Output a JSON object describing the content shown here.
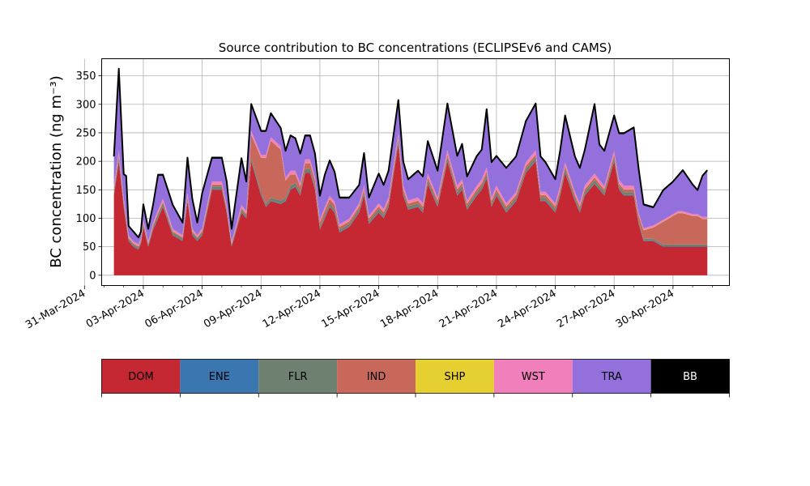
{
  "chart_data": {
    "type": "area",
    "stacked": true,
    "title": "Source contribution to BC concentrations (ECLIPSEv6 and CAMS)",
    "ylabel": "BC concentration (ng m⁻³)",
    "xlabel": "",
    "ylim": [
      -18,
      380
    ],
    "xlim": [
      "2024-03-31T21:00",
      "2024-05-02T21:00"
    ],
    "yticks": [
      0,
      50,
      100,
      150,
      200,
      250,
      300,
      350
    ],
    "xticks": [
      "31-Mar-2024",
      "03-Apr-2024",
      "06-Apr-2024",
      "09-Apr-2024",
      "12-Apr-2024",
      "15-Apr-2024",
      "18-Apr-2024",
      "21-Apr-2024",
      "24-Apr-2024",
      "27-Apr-2024",
      "30-Apr-2024"
    ],
    "grid": true,
    "legend_position": "below",
    "x": [
      "2024-04-01T12:00",
      "2024-04-01T18:00",
      "2024-04-02T00:00",
      "2024-04-02T03:00",
      "2024-04-02T06:00",
      "2024-04-02T12:00",
      "2024-04-02T18:00",
      "2024-04-02T21:00",
      "2024-04-03T00:00",
      "2024-04-03T06:00",
      "2024-04-03T12:00",
      "2024-04-03T18:00",
      "2024-04-04T00:00",
      "2024-04-04T12:00",
      "2024-04-05T00:00",
      "2024-04-05T06:00",
      "2024-04-05T12:00",
      "2024-04-05T18:00",
      "2024-04-06T00:00",
      "2024-04-06T12:00",
      "2024-04-07T00:00",
      "2024-04-07T06:00",
      "2024-04-07T12:00",
      "2024-04-08T00:00",
      "2024-04-08T06:00",
      "2024-04-08T12:00",
      "2024-04-09T00:00",
      "2024-04-09T06:00",
      "2024-04-09T12:00",
      "2024-04-10T00:00",
      "2024-04-10T06:00",
      "2024-04-10T12:00",
      "2024-04-10T18:00",
      "2024-04-11T00:00",
      "2024-04-11T06:00",
      "2024-04-11T12:00",
      "2024-04-11T18:00",
      "2024-04-12T00:00",
      "2024-04-12T06:00",
      "2024-04-12T12:00",
      "2024-04-12T18:00",
      "2024-04-13T00:00",
      "2024-04-13T12:00",
      "2024-04-14T00:00",
      "2024-04-14T06:00",
      "2024-04-14T12:00",
      "2024-04-15T00:00",
      "2024-04-15T06:00",
      "2024-04-15T12:00",
      "2024-04-16T00:00",
      "2024-04-16T06:00",
      "2024-04-16T12:00",
      "2024-04-17T00:00",
      "2024-04-17T06:00",
      "2024-04-17T12:00",
      "2024-04-18T00:00",
      "2024-04-18T12:00",
      "2024-04-19T00:00",
      "2024-04-19T06:00",
      "2024-04-19T12:00",
      "2024-04-20T00:00",
      "2024-04-20T06:00",
      "2024-04-20T12:00",
      "2024-04-20T18:00",
      "2024-04-21T00:00",
      "2024-04-21T12:00",
      "2024-04-22T00:00",
      "2024-04-22T12:00",
      "2024-04-23T00:00",
      "2024-04-23T06:00",
      "2024-04-23T12:00",
      "2024-04-24T00:00",
      "2024-04-24T06:00",
      "2024-04-24T12:00",
      "2024-04-25T00:00",
      "2024-04-25T06:00",
      "2024-04-25T12:00",
      "2024-04-26T00:00",
      "2024-04-26T06:00",
      "2024-04-26T12:00",
      "2024-04-27T00:00",
      "2024-04-27T06:00",
      "2024-04-27T12:00",
      "2024-04-28T00:00",
      "2024-04-28T06:00",
      "2024-04-28T12:00",
      "2024-04-29T00:00",
      "2024-04-29T06:00",
      "2024-04-29T12:00",
      "2024-04-30T00:00",
      "2024-04-30T06:00",
      "2024-04-30T12:00",
      "2024-05-01T00:00",
      "2024-05-01T06:00",
      "2024-05-01T12:00",
      "2024-05-01T18:00"
    ],
    "series": [
      {
        "name": "DOM",
        "color": "#c62833",
        "values": [
          140,
          200,
          120,
          90,
          60,
          50,
          45,
          55,
          85,
          50,
          80,
          100,
          120,
          70,
          60,
          130,
          70,
          60,
          70,
          150,
          150,
          110,
          50,
          110,
          100,
          200,
          140,
          120,
          130,
          125,
          130,
          150,
          155,
          140,
          180,
          180,
          150,
          80,
          100,
          120,
          110,
          75,
          85,
          110,
          140,
          90,
          110,
          100,
          120,
          230,
          140,
          115,
          120,
          110,
          160,
          120,
          200,
          140,
          150,
          115,
          140,
          150,
          170,
          120,
          140,
          110,
          130,
          180,
          200,
          130,
          130,
          110,
          140,
          180,
          130,
          110,
          140,
          160,
          150,
          140,
          200,
          150,
          140,
          140,
          90,
          60,
          60,
          55,
          50,
          50,
          50,
          50,
          50,
          50,
          50,
          50
        ]
      },
      {
        "name": "ENE",
        "color": "#3a76b0",
        "values": [
          2,
          2,
          2,
          1,
          1,
          1,
          1,
          1,
          1,
          1,
          1,
          1,
          1,
          1,
          1,
          1,
          1,
          1,
          1,
          1,
          1,
          1,
          1,
          1,
          1,
          1,
          1,
          1,
          1,
          1,
          1,
          1,
          1,
          1,
          1,
          1,
          1,
          1,
          1,
          1,
          1,
          1,
          1,
          1,
          1,
          1,
          1,
          1,
          1,
          1,
          1,
          1,
          1,
          1,
          1,
          1,
          1,
          1,
          1,
          1,
          1,
          1,
          1,
          1,
          1,
          1,
          1,
          1,
          1,
          1,
          1,
          1,
          1,
          1,
          1,
          1,
          1,
          1,
          1,
          1,
          1,
          1,
          1,
          1,
          1,
          1,
          1,
          1,
          1,
          1,
          1,
          1,
          1,
          1,
          1,
          1
        ]
      },
      {
        "name": "FLR",
        "color": "#6e8070",
        "values": [
          5,
          6,
          5,
          4,
          3,
          3,
          3,
          3,
          4,
          3,
          4,
          5,
          5,
          4,
          4,
          5,
          4,
          4,
          4,
          5,
          5,
          4,
          3,
          4,
          4,
          6,
          5,
          5,
          5,
          5,
          5,
          6,
          6,
          5,
          6,
          6,
          5,
          4,
          5,
          5,
          5,
          4,
          4,
          5,
          5,
          4,
          5,
          5,
          5,
          7,
          5,
          5,
          5,
          5,
          6,
          5,
          6,
          5,
          6,
          5,
          5,
          6,
          6,
          5,
          5,
          5,
          5,
          6,
          6,
          5,
          5,
          5,
          5,
          6,
          5,
          5,
          5,
          6,
          5,
          5,
          6,
          5,
          5,
          5,
          4,
          3,
          3,
          3,
          3,
          3,
          3,
          3,
          3,
          3,
          3,
          3
        ]
      },
      {
        "name": "IND",
        "color": "#c8685a",
        "values": [
          3,
          4,
          3,
          3,
          2,
          2,
          2,
          2,
          3,
          2,
          3,
          3,
          3,
          2,
          2,
          3,
          2,
          2,
          3,
          3,
          3,
          3,
          2,
          3,
          3,
          40,
          60,
          80,
          100,
          90,
          30,
          20,
          15,
          10,
          10,
          10,
          10,
          8,
          8,
          8,
          8,
          5,
          5,
          5,
          5,
          5,
          5,
          5,
          5,
          5,
          5,
          5,
          5,
          5,
          5,
          5,
          5,
          5,
          5,
          5,
          5,
          5,
          5,
          5,
          5,
          5,
          5,
          5,
          5,
          5,
          5,
          5,
          5,
          5,
          5,
          5,
          5,
          5,
          5,
          5,
          5,
          5,
          5,
          5,
          10,
          15,
          20,
          30,
          40,
          50,
          55,
          55,
          50,
          50,
          45,
          45
        ]
      },
      {
        "name": "SHP",
        "color": "#e6cf30",
        "values": [
          0.5,
          0.5,
          0.5,
          0.5,
          0.5,
          0.5,
          0.5,
          0.5,
          0.5,
          0.5,
          0.5,
          0.5,
          0.5,
          0.5,
          0.5,
          0.5,
          0.5,
          0.5,
          0.5,
          0.5,
          0.5,
          0.5,
          0.5,
          0.5,
          0.5,
          0.5,
          0.5,
          0.5,
          0.5,
          0.5,
          0.5,
          0.5,
          0.5,
          0.5,
          0.5,
          0.5,
          0.5,
          0.5,
          0.5,
          0.5,
          0.5,
          0.5,
          0.5,
          0.5,
          0.5,
          0.5,
          0.5,
          0.5,
          0.5,
          0.5,
          0.5,
          0.5,
          0.5,
          0.5,
          0.5,
          0.5,
          0.5,
          0.5,
          0.5,
          0.5,
          0.5,
          0.5,
          0.5,
          0.5,
          0.5,
          0.5,
          0.5,
          0.5,
          0.5,
          0.5,
          0.5,
          0.5,
          0.5,
          0.5,
          0.5,
          0.5,
          0.5,
          0.5,
          0.5,
          0.5,
          0.5,
          0.5,
          0.5,
          0.5,
          0.5,
          0.5,
          0.5,
          0.5,
          0.5,
          0.5,
          0.5,
          0.5,
          0.5,
          0.5,
          0.5,
          0.5
        ]
      },
      {
        "name": "WST",
        "color": "#f07fbc",
        "values": [
          6,
          7,
          5,
          4,
          3,
          3,
          3,
          3,
          4,
          3,
          4,
          5,
          5,
          4,
          3,
          5,
          4,
          3,
          4,
          5,
          5,
          4,
          3,
          5,
          4,
          6,
          5,
          5,
          6,
          5,
          5,
          6,
          6,
          5,
          6,
          6,
          5,
          4,
          5,
          5,
          5,
          4,
          4,
          5,
          6,
          4,
          5,
          5,
          5,
          7,
          6,
          5,
          5,
          5,
          6,
          5,
          7,
          6,
          6,
          5,
          6,
          6,
          7,
          5,
          6,
          5,
          5,
          6,
          7,
          5,
          5,
          5,
          6,
          6,
          5,
          5,
          6,
          6,
          6,
          5,
          6,
          6,
          6,
          6,
          4,
          3,
          3,
          3,
          3,
          3,
          3,
          3,
          3,
          3,
          3,
          3
        ]
      },
      {
        "name": "TRA",
        "color": "#9370db",
        "values": [
          50,
          140,
          40,
          70,
          15,
          15,
          10,
          10,
          25,
          20,
          30,
          60,
          40,
          40,
          20,
          60,
          50,
          20,
          60,
          40,
          40,
          40,
          20,
          80,
          50,
          45,
          40,
          40,
          40,
          30,
          45,
          60,
          55,
          50,
          40,
          40,
          40,
          40,
          55,
          60,
          50,
          45,
          35,
          30,
          55,
          30,
          50,
          40,
          45,
          55,
          40,
          35,
          45,
          45,
          55,
          45,
          80,
          50,
          60,
          40,
          50,
          50,
          100,
          60,
          50,
          60,
          60,
          70,
          80,
          60,
          50,
          40,
          60,
          80,
          60,
          60,
          60,
          120,
          60,
          60,
          60,
          80,
          90,
          100,
          75,
          40,
          30,
          40,
          50,
          55,
          60,
          70,
          50,
          40,
          70,
          80
        ]
      },
      {
        "name": "BB",
        "color": "#000000",
        "values": [
          2,
          3,
          2,
          2,
          2,
          2,
          2,
          2,
          2,
          2,
          2,
          2,
          2,
          2,
          2,
          2,
          2,
          2,
          2,
          2,
          2,
          2,
          2,
          2,
          2,
          2,
          2,
          2,
          2,
          2,
          2,
          2,
          2,
          2,
          2,
          2,
          2,
          2,
          2,
          2,
          2,
          2,
          2,
          2,
          2,
          2,
          2,
          2,
          2,
          2,
          2,
          2,
          2,
          2,
          2,
          2,
          2,
          2,
          2,
          2,
          2,
          2,
          2,
          2,
          2,
          2,
          2,
          2,
          2,
          2,
          2,
          2,
          2,
          2,
          2,
          2,
          2,
          2,
          2,
          2,
          2,
          2,
          2,
          2,
          2,
          2,
          2,
          2,
          2,
          2,
          2,
          2,
          2,
          2,
          2,
          2
        ]
      }
    ]
  }
}
